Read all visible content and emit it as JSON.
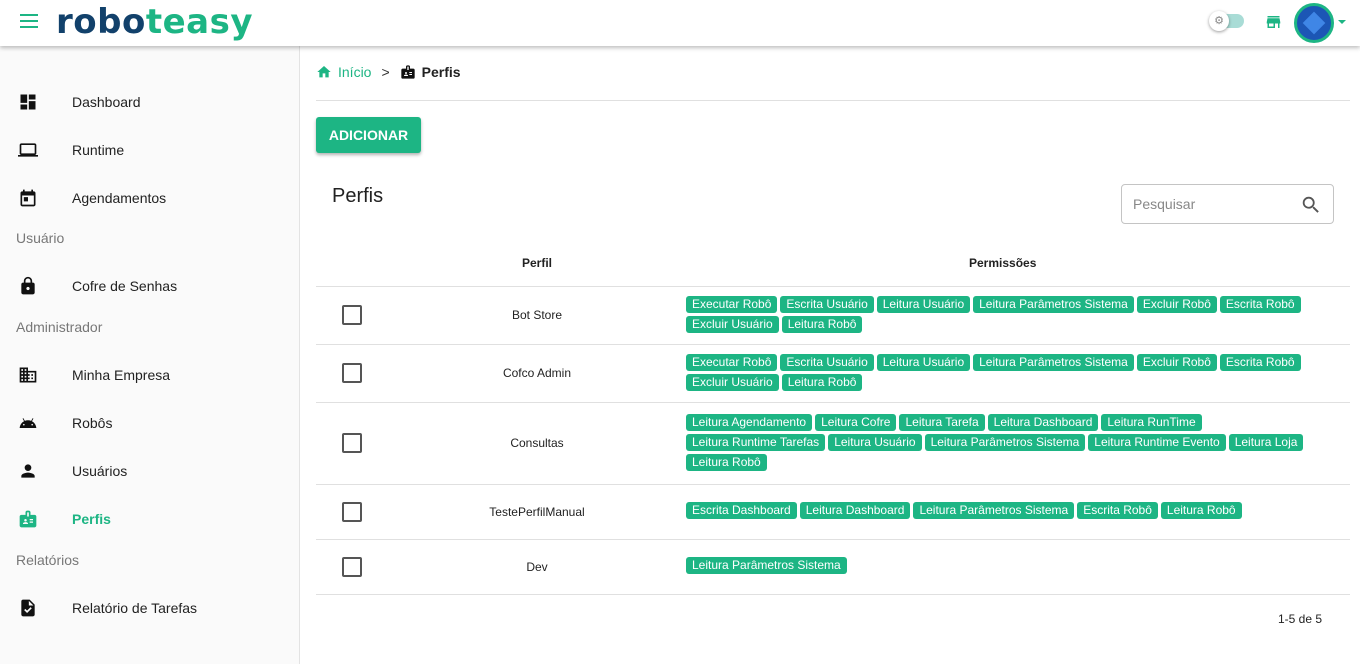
{
  "header": {
    "logo_part1": "robo",
    "logo_part2": "teasy",
    "accent": "#1db584",
    "brand_dark": "#12416b"
  },
  "sidebar": {
    "items": [
      {
        "label": "Dashboard",
        "icon": "dashboard-icon"
      },
      {
        "label": "Runtime",
        "icon": "laptop-icon"
      },
      {
        "label": "Agendamentos",
        "icon": "calendar-icon"
      }
    ],
    "section_user": "Usuário",
    "user_items": [
      {
        "label": "Cofre de Senhas",
        "icon": "lock-icon"
      }
    ],
    "section_admin": "Administrador",
    "admin_items": [
      {
        "label": "Minha Empresa",
        "icon": "building-icon"
      },
      {
        "label": "Robôs",
        "icon": "android-icon"
      },
      {
        "label": "Usuários",
        "icon": "person-icon"
      },
      {
        "label": "Perfis",
        "icon": "badge-icon",
        "active": true
      }
    ],
    "section_reports": "Relatórios",
    "report_items": [
      {
        "label": "Relatório de Tarefas",
        "icon": "task-report-icon"
      }
    ]
  },
  "breadcrumb": {
    "home": "Início",
    "separator": ">",
    "current": "Perfis"
  },
  "main": {
    "add_label": "ADICIONAR",
    "title": "Perfis",
    "search_placeholder": "Pesquisar",
    "columns": {
      "profile": "Perfil",
      "permissions": "Permissões"
    },
    "rows": [
      {
        "name": "Bot Store",
        "perms": [
          "Executar Robô",
          "Escrita Usuário",
          "Leitura Usuário",
          "Leitura Parâmetros Sistema",
          "Excluir Robô",
          "Escrita Robô",
          "Excluir Usuário",
          "Leitura Robô"
        ]
      },
      {
        "name": "Cofco Admin",
        "perms": [
          "Executar Robô",
          "Escrita Usuário",
          "Leitura Usuário",
          "Leitura Parâmetros Sistema",
          "Excluir Robô",
          "Escrita Robô",
          "Excluir Usuário",
          "Leitura Robô"
        ]
      },
      {
        "name": "Consultas",
        "perms": [
          "Leitura Agendamento",
          "Leitura Cofre",
          "Leitura Tarefa",
          "Leitura Dashboard",
          "Leitura RunTime",
          "Leitura Runtime Tarefas",
          "Leitura Usuário",
          "Leitura Parâmetros Sistema",
          "Leitura Runtime Evento",
          "Leitura Loja",
          "Leitura Robô"
        ]
      },
      {
        "name": "TestePerfilManual",
        "perms": [
          "Escrita Dashboard",
          "Leitura Dashboard",
          "Leitura Parâmetros Sistema",
          "Escrita Robô",
          "Leitura Robô"
        ]
      },
      {
        "name": "Dev",
        "perms": [
          "Leitura Parâmetros Sistema"
        ]
      }
    ],
    "pagination": "1-5 de 5"
  }
}
